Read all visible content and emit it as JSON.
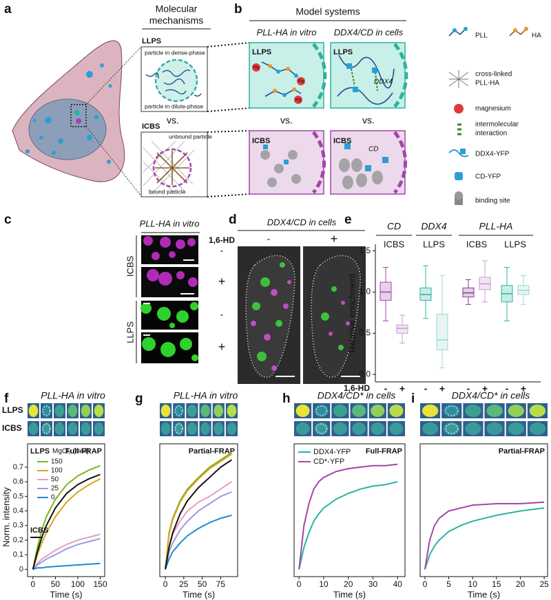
{
  "panel_a": {
    "label": "a",
    "header_lines": [
      "Molecular",
      "mechanisms"
    ],
    "llps_title": "LLPS",
    "dense_label": "particle in dense-phase",
    "dilute_label": "particle in dilute-phase",
    "vs": "vs.",
    "icbs_title": "ICBS",
    "unbound_label": "unbound particle",
    "bound_label": "bound particle"
  },
  "panel_b": {
    "label": "b",
    "header": "Model systems",
    "col1": "PLL-HA in vitro",
    "col2": "DDX4/CD in cells",
    "llps": "LLPS",
    "icbs": "ICBS",
    "mg": "Mg",
    "ddx4": "DDX4",
    "cd": "CD",
    "legend": {
      "pll": "PLL",
      "ha": "HA",
      "crosslinked": [
        "cross-linked",
        "PLL-HA"
      ],
      "magnesium": "magnesium",
      "interaction": [
        "intermolecular",
        "interaction"
      ],
      "ddx4": "DDX4-YFP",
      "cd": "CD-YFP",
      "binding": "binding site"
    }
  },
  "panel_c": {
    "label": "c",
    "title": "PLL-HA in vitro",
    "treatment": "1,6-HD",
    "minus": "-",
    "plus": "+",
    "icbs": "ICBS",
    "llps": "LLPS"
  },
  "panel_d": {
    "label": "d",
    "title": "DDX4/CD in cells",
    "minus": "-",
    "plus": "+"
  },
  "chart_data": [
    {
      "type": "box",
      "panel_label": "e",
      "group_labels": [
        "CD",
        "DDX4",
        "PLL-HA"
      ],
      "sub_labels": [
        "ICBS",
        "LLPS",
        "ICBS",
        "LLPS"
      ],
      "categories": [
        "-",
        "+",
        "-",
        "+",
        "-",
        "+",
        "-",
        "+"
      ],
      "x_title": "1,6-HD",
      "ylabel": "Relative enrichment",
      "ylim": [
        -0.09,
        1.58
      ],
      "yticks": [
        {
          "value": 0,
          "label": "0.0"
        },
        0.5,
        {
          "value": 1,
          "label": "1.0"
        },
        1.5
      ],
      "whisker_low": [
        0.65,
        0.38,
        0.68,
        0.08,
        0.85,
        0.88,
        0.65,
        0.85
      ],
      "q1": [
        0.9,
        0.5,
        0.9,
        0.3,
        0.94,
        1.03,
        0.88,
        0.97
      ],
      "median": [
        1.0,
        0.56,
        0.97,
        0.42,
        0.99,
        1.1,
        0.98,
        1.02
      ],
      "q3": [
        1.12,
        0.6,
        1.05,
        0.73,
        1.05,
        1.18,
        1.08,
        1.08
      ],
      "whisker_high": [
        1.3,
        0.72,
        1.32,
        1.2,
        1.15,
        1.38,
        1.3,
        1.2
      ],
      "colors": [
        "#a046a8",
        "#c89ad0",
        "#2bb3a0",
        "#9ad9cf",
        "#8a3a96",
        "#c89ad0",
        "#2bb3a0",
        "#9ad9cf"
      ]
    },
    {
      "type": "line",
      "panel_label": "f",
      "title": "PLL-HA in vitro",
      "rows": [
        "LLPS",
        "ICBS"
      ],
      "annotation": "Full-FRAP",
      "legend_title": "LLPS",
      "legend_subtitle": "MgCl₂ (mM)",
      "xlabel": "Time (s)",
      "ylabel": "Norm. intensity",
      "xlim": [
        -12,
        160
      ],
      "xticks": [
        0,
        50,
        100,
        150
      ],
      "ylim": [
        -0.05,
        0.86
      ],
      "yticks": [
        0,
        0.1,
        0.2,
        0.3,
        0.4,
        0.5,
        0.6,
        0.7
      ],
      "x": [
        0,
        10,
        20,
        30,
        50,
        75,
        100,
        125,
        150
      ],
      "series": [
        {
          "name": "150",
          "color": "#7ab51d",
          "values": [
            0,
            0.15,
            0.27,
            0.36,
            0.48,
            0.58,
            0.64,
            0.68,
            0.71
          ]
        },
        {
          "name": "100",
          "color": "#d9a21b",
          "values": [
            0,
            0.1,
            0.18,
            0.25,
            0.36,
            0.46,
            0.53,
            0.58,
            0.62
          ]
        },
        {
          "name": "50",
          "color": "#e79bc2",
          "values": [
            0,
            0.04,
            0.07,
            0.09,
            0.13,
            0.17,
            0.2,
            0.22,
            0.24
          ]
        },
        {
          "name": "25",
          "color": "#9b9be0",
          "values": [
            0,
            0.03,
            0.05,
            0.07,
            0.1,
            0.14,
            0.17,
            0.19,
            0.21
          ]
        },
        {
          "name": "0",
          "color": "#1e8ad0",
          "values": [
            0,
            0.01,
            0.01,
            0.015,
            0.02,
            0.025,
            0.03,
            0.035,
            0.04
          ]
        },
        {
          "name": "ICBS",
          "color": "#111111",
          "values": [
            0,
            0.12,
            0.22,
            0.3,
            0.42,
            0.52,
            0.58,
            0.62,
            0.65
          ]
        }
      ]
    },
    {
      "type": "line",
      "panel_label": "g",
      "title": "PLL-HA in vitro",
      "annotation": "Partial-FRAP",
      "xlabel": "Time (s)",
      "xlim": [
        -7.5,
        98
      ],
      "xticks": [
        0,
        25,
        50,
        75
      ],
      "ylim": [
        -0.05,
        0.86
      ],
      "x": [
        0,
        5,
        10,
        20,
        30,
        45,
        60,
        75,
        90
      ],
      "series": [
        {
          "color": "#7ab51d",
          "values": [
            0,
            0.25,
            0.35,
            0.47,
            0.55,
            0.63,
            0.7,
            0.75,
            0.8
          ]
        },
        {
          "color": "#d9a21b",
          "values": [
            0,
            0.24,
            0.34,
            0.46,
            0.54,
            0.62,
            0.69,
            0.74,
            0.79
          ]
        },
        {
          "color": "#e79bc2",
          "values": [
            0,
            0.15,
            0.24,
            0.33,
            0.4,
            0.46,
            0.5,
            0.55,
            0.6
          ]
        },
        {
          "color": "#9b9be0",
          "values": [
            0,
            0.12,
            0.18,
            0.27,
            0.33,
            0.4,
            0.45,
            0.5,
            0.53
          ]
        },
        {
          "color": "#1e8ad0",
          "values": [
            0,
            0.07,
            0.12,
            0.18,
            0.23,
            0.28,
            0.32,
            0.35,
            0.37
          ]
        },
        {
          "color": "#111111",
          "values": [
            0,
            0.15,
            0.25,
            0.38,
            0.47,
            0.56,
            0.63,
            0.7,
            0.75
          ]
        }
      ]
    },
    {
      "type": "line",
      "panel_label": "h",
      "title": "DDX4/CD* in cells",
      "annotation": "Full-FRAP",
      "xlabel": "Time (s)",
      "xlim": [
        -2,
        43
      ],
      "xticks": [
        0,
        10,
        20,
        30,
        40
      ],
      "ylim": [
        -0.05,
        0.86
      ],
      "x": [
        0,
        2,
        4,
        6,
        8,
        10,
        15,
        20,
        25,
        30,
        35,
        40
      ],
      "series": [
        {
          "name": "DDX4-YFP",
          "color": "#2bb3a0",
          "values": [
            0,
            0.15,
            0.25,
            0.33,
            0.38,
            0.42,
            0.48,
            0.52,
            0.55,
            0.57,
            0.58,
            0.6
          ]
        },
        {
          "name": "CD*-YFP",
          "color": "#a046a8",
          "values": [
            0,
            0.3,
            0.45,
            0.55,
            0.6,
            0.63,
            0.67,
            0.69,
            0.7,
            0.71,
            0.71,
            0.72
          ]
        }
      ]
    },
    {
      "type": "line",
      "panel_label": "i",
      "title": "DDX4/CD* in cells",
      "annotation": "Partial-FRAP",
      "xlabel": "Time (s)",
      "xlim": [
        -1,
        25.7
      ],
      "xticks": [
        0,
        5,
        10,
        15,
        20,
        25
      ],
      "ylim": [
        -0.05,
        0.86
      ],
      "x": [
        0,
        1,
        2,
        3,
        5,
        7.5,
        10,
        15,
        20,
        25
      ],
      "series": [
        {
          "color": "#2bb3a0",
          "values": [
            0,
            0.1,
            0.16,
            0.2,
            0.26,
            0.3,
            0.33,
            0.37,
            0.4,
            0.42
          ]
        },
        {
          "color": "#a046a8",
          "values": [
            0,
            0.2,
            0.3,
            0.35,
            0.4,
            0.42,
            0.44,
            0.45,
            0.45,
            0.46
          ]
        }
      ]
    }
  ]
}
